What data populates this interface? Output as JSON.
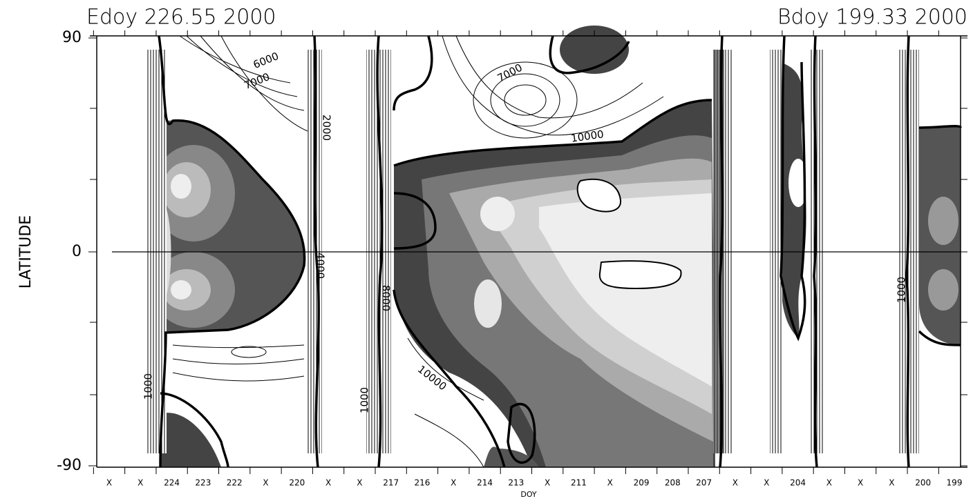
{
  "chart_data": {
    "type": "contour",
    "title_left": "Edoy 226.55 2000",
    "title_right": "Bdoy 199.33 2000",
    "y_label": "LATITUDE",
    "x_label": "DOY",
    "categories": [
      "X",
      "X",
      "224",
      "223",
      "222",
      "X",
      "220",
      "X",
      "X",
      "217",
      "216",
      "X",
      "214",
      "213",
      "X",
      "211",
      "X",
      "209",
      "208",
      "207",
      "X",
      "X",
      "204",
      "X",
      "X",
      "X",
      "200",
      "199"
    ],
    "ylim": [
      -90,
      90
    ],
    "yticks": [
      -90,
      0,
      90
    ],
    "annotations": [
      "6000",
      "7000",
      "7000",
      "10000",
      "10000",
      "8000",
      "4000",
      "2000",
      "1000",
      "1000",
      "1000"
    ]
  }
}
